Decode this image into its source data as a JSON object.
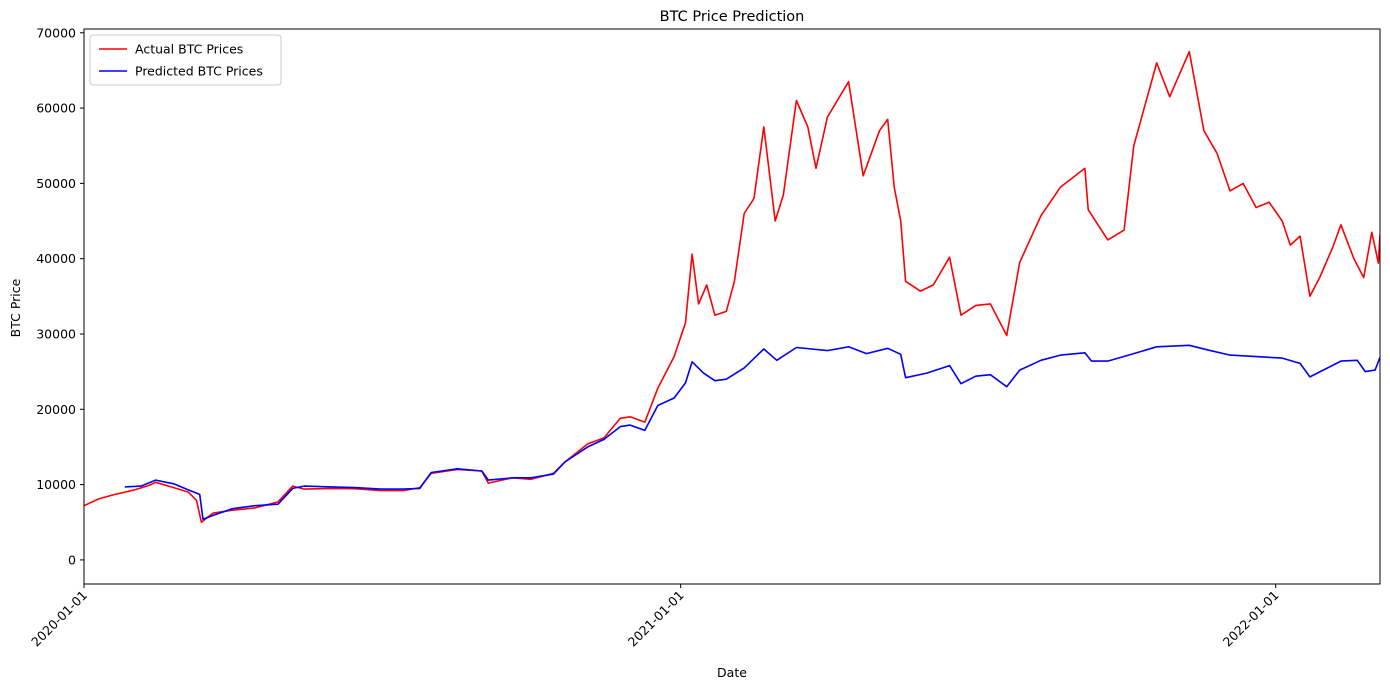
{
  "chart_data": {
    "type": "line",
    "title": "BTC Price Prediction",
    "xlabel": "Date",
    "ylabel": "BTC Price",
    "x_type": "date",
    "xlim": [
      "2020-01-01",
      "2022-03-06"
    ],
    "ylim": [
      -3200,
      70500
    ],
    "x_ticks": [
      "2020-01-01",
      "2021-01-01",
      "2022-01-01"
    ],
    "y_ticks": [
      0,
      10000,
      20000,
      30000,
      40000,
      50000,
      60000,
      70000
    ],
    "grid": false,
    "legend_position": "upper-left",
    "series": [
      {
        "name": "Actual BTC Prices",
        "color": "#ff0000",
        "points": [
          [
            "2020-01-01",
            7200
          ],
          [
            "2020-01-10",
            8100
          ],
          [
            "2020-01-20",
            8700
          ],
          [
            "2020-02-01",
            9300
          ],
          [
            "2020-02-10",
            9900
          ],
          [
            "2020-02-14",
            10300
          ],
          [
            "2020-02-25",
            9600
          ],
          [
            "2020-03-05",
            9000
          ],
          [
            "2020-03-10",
            7900
          ],
          [
            "2020-03-13",
            5000
          ],
          [
            "2020-03-20",
            6200
          ],
          [
            "2020-04-01",
            6600
          ],
          [
            "2020-04-15",
            6900
          ],
          [
            "2020-04-29",
            7700
          ],
          [
            "2020-05-08",
            9800
          ],
          [
            "2020-05-15",
            9400
          ],
          [
            "2020-06-01",
            9500
          ],
          [
            "2020-06-15",
            9450
          ],
          [
            "2020-07-01",
            9200
          ],
          [
            "2020-07-15",
            9200
          ],
          [
            "2020-07-25",
            9600
          ],
          [
            "2020-08-01",
            11500
          ],
          [
            "2020-08-17",
            12000
          ],
          [
            "2020-09-01",
            11800
          ],
          [
            "2020-09-05",
            10200
          ],
          [
            "2020-09-20",
            10900
          ],
          [
            "2020-10-01",
            10700
          ],
          [
            "2020-10-15",
            11500
          ],
          [
            "2020-10-22",
            13000
          ],
          [
            "2020-11-05",
            15400
          ],
          [
            "2020-11-15",
            16200
          ],
          [
            "2020-11-25",
            18800
          ],
          [
            "2020-12-01",
            19000
          ],
          [
            "2020-12-10",
            18300
          ],
          [
            "2020-12-18",
            22800
          ],
          [
            "2020-12-28",
            27000
          ],
          [
            "2021-01-04",
            31500
          ],
          [
            "2021-01-08",
            40600
          ],
          [
            "2021-01-12",
            34000
          ],
          [
            "2021-01-17",
            36500
          ],
          [
            "2021-01-22",
            32500
          ],
          [
            "2021-01-29",
            33000
          ],
          [
            "2021-02-03",
            37000
          ],
          [
            "2021-02-09",
            46000
          ],
          [
            "2021-02-15",
            48000
          ],
          [
            "2021-02-21",
            57500
          ],
          [
            "2021-02-28",
            45000
          ],
          [
            "2021-03-05",
            48500
          ],
          [
            "2021-03-13",
            61000
          ],
          [
            "2021-03-20",
            57500
          ],
          [
            "2021-03-25",
            52000
          ],
          [
            "2021-04-01",
            58800
          ],
          [
            "2021-04-14",
            63500
          ],
          [
            "2021-04-23",
            51000
          ],
          [
            "2021-05-03",
            57000
          ],
          [
            "2021-05-08",
            58500
          ],
          [
            "2021-05-12",
            49500
          ],
          [
            "2021-05-16",
            45000
          ],
          [
            "2021-05-19",
            37000
          ],
          [
            "2021-05-28",
            35700
          ],
          [
            "2021-06-05",
            36500
          ],
          [
            "2021-06-15",
            40200
          ],
          [
            "2021-06-22",
            32500
          ],
          [
            "2021-07-01",
            33800
          ],
          [
            "2021-07-10",
            34000
          ],
          [
            "2021-07-20",
            29800
          ],
          [
            "2021-07-28",
            39500
          ],
          [
            "2021-08-10",
            45700
          ],
          [
            "2021-08-22",
            49500
          ],
          [
            "2021-09-06",
            52000
          ],
          [
            "2021-09-08",
            46500
          ],
          [
            "2021-09-20",
            42500
          ],
          [
            "2021-09-30",
            43800
          ],
          [
            "2021-10-06",
            55000
          ],
          [
            "2021-10-20",
            66000
          ],
          [
            "2021-10-28",
            61500
          ],
          [
            "2021-11-09",
            67500
          ],
          [
            "2021-11-18",
            57000
          ],
          [
            "2021-11-26",
            54000
          ],
          [
            "2021-12-04",
            49000
          ],
          [
            "2021-12-12",
            50000
          ],
          [
            "2021-12-20",
            46800
          ],
          [
            "2021-12-28",
            47500
          ],
          [
            "2022-01-05",
            45000
          ],
          [
            "2022-01-10",
            41800
          ],
          [
            "2022-01-16",
            43000
          ],
          [
            "2022-01-22",
            35000
          ],
          [
            "2022-01-28",
            37500
          ],
          [
            "2022-02-05",
            41500
          ],
          [
            "2022-02-10",
            44500
          ],
          [
            "2022-02-18",
            40000
          ],
          [
            "2022-02-24",
            37500
          ],
          [
            "2022-03-01",
            43500
          ],
          [
            "2022-03-05",
            39400
          ],
          [
            "2022-03-06",
            43200
          ]
        ]
      },
      {
        "name": "Predicted BTC Prices",
        "color": "#0000ff",
        "points": [
          [
            "2020-01-26",
            9700
          ],
          [
            "2020-02-05",
            9800
          ],
          [
            "2020-02-14",
            10600
          ],
          [
            "2020-02-25",
            10100
          ],
          [
            "2020-03-05",
            9300
          ],
          [
            "2020-03-12",
            8700
          ],
          [
            "2020-03-14",
            5400
          ],
          [
            "2020-03-20",
            5900
          ],
          [
            "2020-04-01",
            6800
          ],
          [
            "2020-04-15",
            7200
          ],
          [
            "2020-04-29",
            7400
          ],
          [
            "2020-05-08",
            9500
          ],
          [
            "2020-05-15",
            9800
          ],
          [
            "2020-06-01",
            9700
          ],
          [
            "2020-06-15",
            9600
          ],
          [
            "2020-07-01",
            9400
          ],
          [
            "2020-07-15",
            9400
          ],
          [
            "2020-07-25",
            9500
          ],
          [
            "2020-08-01",
            11600
          ],
          [
            "2020-08-17",
            12100
          ],
          [
            "2020-09-01",
            11800
          ],
          [
            "2020-09-05",
            10600
          ],
          [
            "2020-09-20",
            10900
          ],
          [
            "2020-10-01",
            10900
          ],
          [
            "2020-10-15",
            11400
          ],
          [
            "2020-10-22",
            13000
          ],
          [
            "2020-11-05",
            15000
          ],
          [
            "2020-11-15",
            16000
          ],
          [
            "2020-11-25",
            17700
          ],
          [
            "2020-12-01",
            17900
          ],
          [
            "2020-12-10",
            17200
          ],
          [
            "2020-12-18",
            20500
          ],
          [
            "2020-12-28",
            21500
          ],
          [
            "2021-01-04",
            23500
          ],
          [
            "2021-01-08",
            26300
          ],
          [
            "2021-01-15",
            24800
          ],
          [
            "2021-01-22",
            23800
          ],
          [
            "2021-01-29",
            24000
          ],
          [
            "2021-02-09",
            25500
          ],
          [
            "2021-02-21",
            28000
          ],
          [
            "2021-03-01",
            26500
          ],
          [
            "2021-03-13",
            28200
          ],
          [
            "2021-04-01",
            27800
          ],
          [
            "2021-04-14",
            28300
          ],
          [
            "2021-04-25",
            27400
          ],
          [
            "2021-05-08",
            28100
          ],
          [
            "2021-05-16",
            27300
          ],
          [
            "2021-05-19",
            24200
          ],
          [
            "2021-06-01",
            24800
          ],
          [
            "2021-06-15",
            25800
          ],
          [
            "2021-06-22",
            23400
          ],
          [
            "2021-07-01",
            24400
          ],
          [
            "2021-07-10",
            24600
          ],
          [
            "2021-07-20",
            23000
          ],
          [
            "2021-07-28",
            25200
          ],
          [
            "2021-08-10",
            26500
          ],
          [
            "2021-08-22",
            27200
          ],
          [
            "2021-09-06",
            27500
          ],
          [
            "2021-09-10",
            26400
          ],
          [
            "2021-09-20",
            26400
          ],
          [
            "2021-10-06",
            27400
          ],
          [
            "2021-10-20",
            28300
          ],
          [
            "2021-11-09",
            28500
          ],
          [
            "2021-11-20",
            27900
          ],
          [
            "2021-12-04",
            27200
          ],
          [
            "2021-12-20",
            27000
          ],
          [
            "2022-01-05",
            26800
          ],
          [
            "2022-01-16",
            26100
          ],
          [
            "2022-01-22",
            24300
          ],
          [
            "2022-02-01",
            25400
          ],
          [
            "2022-02-10",
            26400
          ],
          [
            "2022-02-20",
            26500
          ],
          [
            "2022-02-25",
            25000
          ],
          [
            "2022-03-03",
            25200
          ],
          [
            "2022-03-06",
            26900
          ]
        ]
      }
    ]
  }
}
